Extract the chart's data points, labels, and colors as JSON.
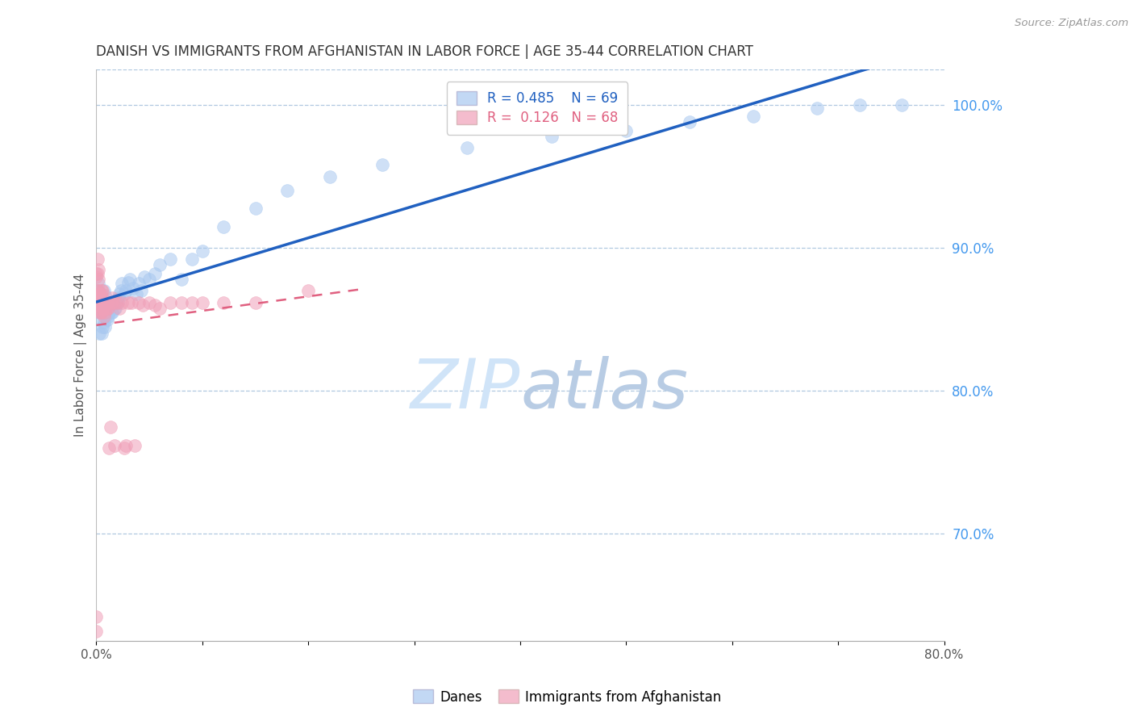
{
  "title": "DANISH VS IMMIGRANTS FROM AFGHANISTAN IN LABOR FORCE | AGE 35-44 CORRELATION CHART",
  "source": "Source: ZipAtlas.com",
  "ylabel": "In Labor Force | Age 35-44",
  "xlim": [
    0.0,
    0.8
  ],
  "ylim": [
    0.625,
    1.025
  ],
  "xticks": [
    0.0,
    0.1,
    0.2,
    0.3,
    0.4,
    0.5,
    0.6,
    0.7,
    0.8
  ],
  "xticklabels": [
    "0.0%",
    "",
    "",
    "",
    "",
    "",
    "",
    "",
    "80.0%"
  ],
  "yticks_right": [
    0.7,
    0.8,
    0.9,
    1.0
  ],
  "yticklabels_right": [
    "70.0%",
    "80.0%",
    "90.0%",
    "100.0%"
  ],
  "legend_blue_r": "R = 0.485",
  "legend_blue_n": "N = 69",
  "legend_pink_r": "R =  0.126",
  "legend_pink_n": "N = 68",
  "legend_label_blue": "Danes",
  "legend_label_pink": "Immigrants from Afghanistan",
  "watermark_zip": "ZIP",
  "watermark_atlas": "atlas",
  "blue_color": "#a8c8f0",
  "pink_color": "#f0a0b8",
  "blue_line_color": "#2060c0",
  "pink_line_color": "#e06080",
  "grid_color": "#b0c8e0",
  "danes_x": [
    0.001,
    0.001,
    0.002,
    0.002,
    0.003,
    0.003,
    0.003,
    0.004,
    0.004,
    0.005,
    0.005,
    0.005,
    0.006,
    0.006,
    0.006,
    0.007,
    0.007,
    0.007,
    0.008,
    0.008,
    0.008,
    0.009,
    0.009,
    0.01,
    0.01,
    0.011,
    0.011,
    0.012,
    0.013,
    0.014,
    0.015,
    0.016,
    0.017,
    0.018,
    0.019,
    0.02,
    0.021,
    0.022,
    0.023,
    0.024,
    0.026,
    0.028,
    0.03,
    0.032,
    0.035,
    0.038,
    0.04,
    0.042,
    0.045,
    0.05,
    0.055,
    0.06,
    0.07,
    0.08,
    0.09,
    0.1,
    0.12,
    0.15,
    0.18,
    0.22,
    0.27,
    0.35,
    0.43,
    0.5,
    0.56,
    0.62,
    0.68,
    0.72,
    0.76
  ],
  "danes_y": [
    0.87,
    0.86,
    0.85,
    0.875,
    0.84,
    0.855,
    0.865,
    0.855,
    0.862,
    0.84,
    0.855,
    0.865,
    0.845,
    0.857,
    0.865,
    0.848,
    0.858,
    0.87,
    0.845,
    0.857,
    0.867,
    0.852,
    0.862,
    0.85,
    0.862,
    0.852,
    0.862,
    0.855,
    0.86,
    0.855,
    0.855,
    0.862,
    0.858,
    0.858,
    0.862,
    0.862,
    0.865,
    0.868,
    0.87,
    0.875,
    0.868,
    0.87,
    0.876,
    0.878,
    0.872,
    0.868,
    0.875,
    0.87,
    0.88,
    0.878,
    0.882,
    0.888,
    0.892,
    0.878,
    0.892,
    0.898,
    0.915,
    0.928,
    0.94,
    0.95,
    0.958,
    0.97,
    0.978,
    0.982,
    0.988,
    0.992,
    0.998,
    1.0,
    1.0
  ],
  "afghan_x": [
    0.0,
    0.0,
    0.0,
    0.0,
    0.001,
    0.001,
    0.001,
    0.001,
    0.001,
    0.002,
    0.002,
    0.002,
    0.002,
    0.002,
    0.003,
    0.003,
    0.003,
    0.003,
    0.003,
    0.004,
    0.004,
    0.004,
    0.004,
    0.005,
    0.005,
    0.005,
    0.005,
    0.006,
    0.006,
    0.006,
    0.007,
    0.007,
    0.007,
    0.008,
    0.008,
    0.008,
    0.009,
    0.009,
    0.01,
    0.01,
    0.011,
    0.012,
    0.013,
    0.014,
    0.015,
    0.016,
    0.017,
    0.018,
    0.02,
    0.022,
    0.024,
    0.026,
    0.028,
    0.03,
    0.033,
    0.036,
    0.04,
    0.044,
    0.05,
    0.055,
    0.06,
    0.07,
    0.08,
    0.09,
    0.1,
    0.12,
    0.15,
    0.2
  ],
  "afghan_y": [
    0.642,
    0.632,
    0.88,
    0.882,
    0.87,
    0.882,
    0.892,
    0.858,
    0.865,
    0.87,
    0.878,
    0.885,
    0.86,
    0.862,
    0.855,
    0.86,
    0.862,
    0.865,
    0.868,
    0.855,
    0.86,
    0.862,
    0.868,
    0.855,
    0.862,
    0.865,
    0.87,
    0.858,
    0.862,
    0.87,
    0.852,
    0.86,
    0.862,
    0.855,
    0.86,
    0.862,
    0.858,
    0.862,
    0.858,
    0.862,
    0.858,
    0.76,
    0.775,
    0.862,
    0.865,
    0.862,
    0.762,
    0.862,
    0.862,
    0.858,
    0.862,
    0.76,
    0.762,
    0.862,
    0.862,
    0.762,
    0.862,
    0.86,
    0.862,
    0.86,
    0.858,
    0.862,
    0.862,
    0.862,
    0.862,
    0.862,
    0.862,
    0.87
  ]
}
